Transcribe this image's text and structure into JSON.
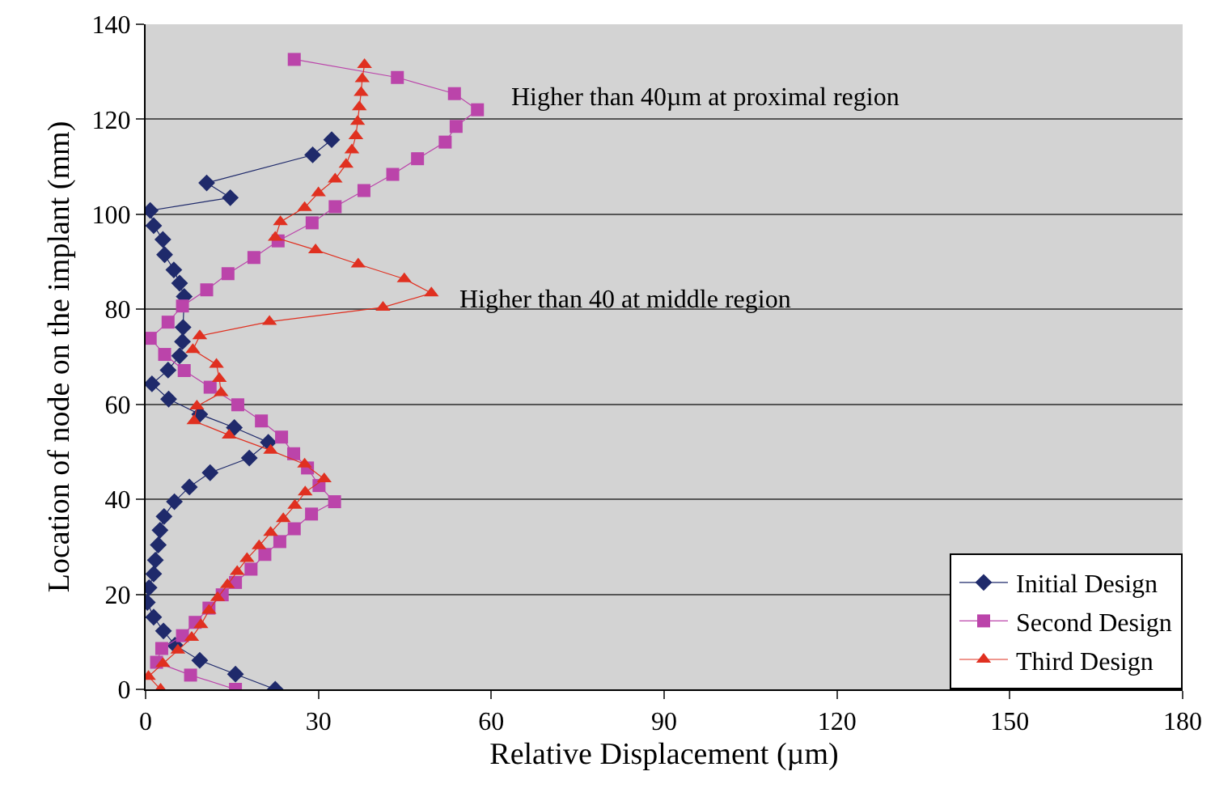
{
  "chart_data": {
    "type": "line",
    "xlabel": "Relative Displacement (µm)",
    "ylabel": "Location of node on the implant (mm)",
    "xlim": [
      0,
      180
    ],
    "xticks": [
      0,
      30,
      60,
      90,
      120,
      150,
      180
    ],
    "ylim": [
      0,
      140
    ],
    "yticks": [
      0,
      20,
      40,
      60,
      80,
      100,
      120,
      140
    ],
    "grid": "y",
    "legend": "bottom right",
    "line_style": "solid",
    "annotations": [
      "Higher than 40µm at proximal region",
      "Higher than 40 at middle region"
    ],
    "series": [
      {
        "name": "Initial Design",
        "color": "#1f2a6b",
        "marker": "diamond",
        "x": [
          22.5,
          15.6,
          9.4,
          5.1,
          3.1,
          1.4,
          0.3,
          0.6,
          1.4,
          1.7,
          2.2,
          2.5,
          3.2,
          5.0,
          7.6,
          11.2,
          18.0,
          21.3,
          15.4,
          9.4,
          4.0,
          1.1,
          3.9,
          5.9,
          6.4,
          6.5,
          6.7,
          5.9,
          4.9,
          3.3,
          3.0,
          1.4,
          0.8,
          14.7,
          10.6,
          29.0,
          32.3
        ],
        "values": [
          0,
          3.2,
          6.1,
          9.3,
          12.3,
          15.2,
          18.3,
          21.4,
          24.3,
          27.2,
          30.4,
          33.5,
          36.4,
          39.5,
          42.6,
          45.6,
          48.7,
          52.0,
          55.1,
          57.9,
          61.1,
          64.3,
          67.2,
          70.2,
          73.2,
          76.2,
          82.7,
          85.5,
          88.3,
          91.5,
          94.7,
          97.6,
          100.8,
          103.5,
          106.6,
          112.5,
          115.7
        ]
      },
      {
        "name": "Second Design",
        "color": "#bb44aa",
        "marker": "square",
        "x": [
          15.6,
          7.8,
          1.9,
          2.8,
          6.4,
          8.6,
          11.0,
          13.3,
          15.6,
          18.3,
          20.7,
          23.3,
          25.8,
          28.8,
          32.8,
          30.1,
          28.1,
          25.7,
          23.6,
          20.1,
          16.0,
          11.2,
          6.7,
          3.3,
          0.8,
          3.9,
          6.4,
          10.6,
          14.3,
          18.8,
          23.0,
          28.9,
          32.9,
          37.9,
          42.9,
          47.2,
          52.0,
          53.9,
          57.6,
          53.6,
          43.7,
          25.8
        ],
        "values": [
          0,
          3.0,
          5.7,
          8.6,
          11.3,
          14.1,
          17.1,
          19.9,
          22.5,
          25.3,
          28.4,
          31.1,
          33.8,
          36.9,
          39.5,
          42.9,
          46.6,
          49.6,
          53.1,
          56.5,
          59.9,
          63.6,
          67.1,
          70.5,
          73.9,
          77.3,
          80.7,
          84.1,
          87.5,
          90.9,
          94.4,
          98.2,
          101.6,
          105.0,
          108.4,
          111.7,
          115.2,
          118.5,
          122.0,
          125.4,
          128.8,
          132.6
        ]
      },
      {
        "name": "Third Design",
        "color": "#e03020",
        "marker": "triangle",
        "x": [
          2.6,
          0.5,
          3.0,
          5.6,
          8.0,
          9.6,
          11.0,
          12.5,
          14.2,
          15.9,
          17.6,
          19.7,
          21.7,
          23.9,
          25.9,
          27.7,
          31.0,
          27.6,
          21.7,
          14.5,
          8.4,
          8.9,
          13.1,
          12.8,
          12.3,
          8.2,
          9.4,
          21.5,
          41.2,
          49.6,
          44.9,
          36.9,
          29.5,
          22.5,
          23.4,
          27.6,
          30.0,
          32.9,
          34.8,
          35.8,
          36.5,
          36.8,
          37.1,
          37.4,
          37.6,
          38.0
        ],
        "values": [
          0,
          2.7,
          5.4,
          8.2,
          10.9,
          13.6,
          16.6,
          19.3,
          22.0,
          24.8,
          27.5,
          30.2,
          33.0,
          35.9,
          38.7,
          41.5,
          44.3,
          47.4,
          50.3,
          53.5,
          56.5,
          59.6,
          62.4,
          65.4,
          68.4,
          71.5,
          74.4,
          77.4,
          80.4,
          83.4,
          86.4,
          89.5,
          92.5,
          95.1,
          98.4,
          101.4,
          104.5,
          107.4,
          110.5,
          113.5,
          116.5,
          119.5,
          122.6,
          125.6,
          128.5,
          131.5
        ]
      }
    ]
  }
}
